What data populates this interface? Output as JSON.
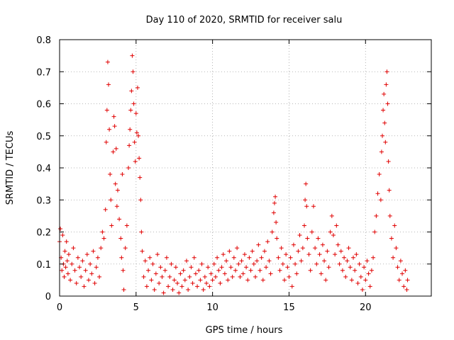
{
  "chart_data": {
    "type": "scatter",
    "title": "Day 110 of 2020, SRMTID for receiver salu",
    "xlabel": "GPS time / hours",
    "ylabel": "SRMTID / TECUs",
    "xlim": [
      0,
      24.3
    ],
    "ylim": [
      0,
      0.8
    ],
    "xticks": [
      0,
      5,
      10,
      15,
      20
    ],
    "xtick_labels": [
      "0",
      "5",
      "10",
      "15",
      "20"
    ],
    "yticks": [
      0,
      0.1,
      0.2,
      0.3,
      0.4,
      0.5,
      0.6,
      0.7,
      0.8
    ],
    "ytick_labels": [
      "0",
      "0.1",
      "0.2",
      "0.3",
      "0.4",
      "0.5",
      "0.6",
      "0.7",
      "0.8"
    ],
    "grid": true,
    "marker": "+",
    "color": "#e00000",
    "series": [
      {
        "name": "SRMTID",
        "points": [
          [
            0.0,
            0.17
          ],
          [
            0.05,
            0.21
          ],
          [
            0.1,
            0.12
          ],
          [
            0.15,
            0.08
          ],
          [
            0.2,
            0.19
          ],
          [
            0.25,
            0.1
          ],
          [
            0.3,
            0.06
          ],
          [
            0.35,
            0.14
          ],
          [
            0.4,
            0.09
          ],
          [
            0.45,
            0.17
          ],
          [
            0.5,
            0.11
          ],
          [
            0.55,
            0.07
          ],
          [
            0.6,
            0.13
          ],
          [
            0.7,
            0.05
          ],
          [
            0.8,
            0.1
          ],
          [
            0.9,
            0.15
          ],
          [
            1.0,
            0.08
          ],
          [
            1.1,
            0.04
          ],
          [
            1.2,
            0.12
          ],
          [
            1.3,
            0.09
          ],
          [
            1.4,
            0.06
          ],
          [
            1.5,
            0.11
          ],
          [
            1.6,
            0.03
          ],
          [
            1.7,
            0.08
          ],
          [
            1.8,
            0.13
          ],
          [
            1.9,
            0.05
          ],
          [
            2.0,
            0.1
          ],
          [
            2.1,
            0.07
          ],
          [
            2.2,
            0.14
          ],
          [
            2.3,
            0.04
          ],
          [
            2.4,
            0.09
          ],
          [
            2.5,
            0.12
          ],
          [
            2.6,
            0.06
          ],
          [
            2.7,
            0.15
          ],
          [
            2.8,
            0.2
          ],
          [
            2.9,
            0.18
          ],
          [
            3.0,
            0.27
          ],
          [
            3.05,
            0.48
          ],
          [
            3.1,
            0.58
          ],
          [
            3.15,
            0.73
          ],
          [
            3.2,
            0.66
          ],
          [
            3.25,
            0.52
          ],
          [
            3.3,
            0.38
          ],
          [
            3.35,
            0.3
          ],
          [
            3.4,
            0.22
          ],
          [
            3.5,
            0.45
          ],
          [
            3.55,
            0.56
          ],
          [
            3.6,
            0.53
          ],
          [
            3.65,
            0.35
          ],
          [
            3.7,
            0.46
          ],
          [
            3.75,
            0.28
          ],
          [
            3.8,
            0.33
          ],
          [
            3.9,
            0.24
          ],
          [
            4.0,
            0.18
          ],
          [
            4.05,
            0.12
          ],
          [
            4.1,
            0.38
          ],
          [
            4.15,
            0.08
          ],
          [
            4.2,
            0.02
          ],
          [
            4.3,
            0.15
          ],
          [
            4.4,
            0.22
          ],
          [
            4.5,
            0.4
          ],
          [
            4.55,
            0.47
          ],
          [
            4.6,
            0.52
          ],
          [
            4.65,
            0.58
          ],
          [
            4.7,
            0.64
          ],
          [
            4.75,
            0.75
          ],
          [
            4.8,
            0.7
          ],
          [
            4.85,
            0.6
          ],
          [
            4.9,
            0.48
          ],
          [
            4.95,
            0.42
          ],
          [
            5.0,
            0.57
          ],
          [
            5.05,
            0.51
          ],
          [
            5.1,
            0.65
          ],
          [
            5.15,
            0.5
          ],
          [
            5.2,
            0.43
          ],
          [
            5.25,
            0.37
          ],
          [
            5.3,
            0.3
          ],
          [
            5.35,
            0.2
          ],
          [
            5.4,
            0.14
          ],
          [
            5.5,
            0.06
          ],
          [
            5.6,
            0.11
          ],
          [
            5.7,
            0.03
          ],
          [
            5.8,
            0.08
          ],
          [
            5.9,
            0.12
          ],
          [
            6.0,
            0.05
          ],
          [
            6.1,
            0.1
          ],
          [
            6.2,
            0.02
          ],
          [
            6.3,
            0.07
          ],
          [
            6.4,
            0.13
          ],
          [
            6.5,
            0.04
          ],
          [
            6.6,
            0.09
          ],
          [
            6.7,
            0.06
          ],
          [
            6.8,
            0.01
          ],
          [
            6.9,
            0.08
          ],
          [
            7.0,
            0.12
          ],
          [
            7.1,
            0.03
          ],
          [
            7.2,
            0.06
          ],
          [
            7.3,
            0.1
          ],
          [
            7.4,
            0.02
          ],
          [
            7.5,
            0.05
          ],
          [
            7.6,
            0.09
          ],
          [
            7.7,
            0.04
          ],
          [
            7.8,
            0.01
          ],
          [
            7.9,
            0.07
          ],
          [
            8.0,
            0.03
          ],
          [
            8.1,
            0.08
          ],
          [
            8.2,
            0.05
          ],
          [
            8.3,
            0.11
          ],
          [
            8.4,
            0.02
          ],
          [
            8.5,
            0.06
          ],
          [
            8.6,
            0.09
          ],
          [
            8.7,
            0.04
          ],
          [
            8.8,
            0.12
          ],
          [
            8.9,
            0.07
          ],
          [
            9.0,
            0.03
          ],
          [
            9.1,
            0.08
          ],
          [
            9.2,
            0.05
          ],
          [
            9.3,
            0.1
          ],
          [
            9.4,
            0.02
          ],
          [
            9.5,
            0.06
          ],
          [
            9.6,
            0.04
          ],
          [
            9.7,
            0.09
          ],
          [
            9.8,
            0.03
          ],
          [
            9.9,
            0.07
          ],
          [
            10.0,
            0.05
          ],
          [
            10.1,
            0.1
          ],
          [
            10.2,
            0.06
          ],
          [
            10.3,
            0.12
          ],
          [
            10.4,
            0.08
          ],
          [
            10.5,
            0.04
          ],
          [
            10.6,
            0.09
          ],
          [
            10.7,
            0.13
          ],
          [
            10.8,
            0.07
          ],
          [
            10.9,
            0.11
          ],
          [
            11.0,
            0.05
          ],
          [
            11.1,
            0.14
          ],
          [
            11.2,
            0.09
          ],
          [
            11.3,
            0.06
          ],
          [
            11.4,
            0.12
          ],
          [
            11.5,
            0.08
          ],
          [
            11.6,
            0.15
          ],
          [
            11.7,
            0.1
          ],
          [
            11.8,
            0.06
          ],
          [
            11.9,
            0.11
          ],
          [
            12.0,
            0.07
          ],
          [
            12.1,
            0.13
          ],
          [
            12.2,
            0.09
          ],
          [
            12.3,
            0.05
          ],
          [
            12.4,
            0.12
          ],
          [
            12.5,
            0.08
          ],
          [
            12.6,
            0.14
          ],
          [
            12.7,
            0.1
          ],
          [
            12.8,
            0.06
          ],
          [
            12.9,
            0.11
          ],
          [
            13.0,
            0.16
          ],
          [
            13.1,
            0.08
          ],
          [
            13.2,
            0.12
          ],
          [
            13.3,
            0.05
          ],
          [
            13.4,
            0.14
          ],
          [
            13.5,
            0.09
          ],
          [
            13.6,
            0.17
          ],
          [
            13.7,
            0.11
          ],
          [
            13.8,
            0.07
          ],
          [
            13.9,
            0.2
          ],
          [
            14.0,
            0.26
          ],
          [
            14.05,
            0.29
          ],
          [
            14.1,
            0.31
          ],
          [
            14.15,
            0.23
          ],
          [
            14.2,
            0.18
          ],
          [
            14.3,
            0.12
          ],
          [
            14.4,
            0.08
          ],
          [
            14.5,
            0.15
          ],
          [
            14.6,
            0.1
          ],
          [
            14.7,
            0.05
          ],
          [
            14.8,
            0.13
          ],
          [
            14.9,
            0.09
          ],
          [
            15.0,
            0.06
          ],
          [
            15.1,
            0.12
          ],
          [
            15.2,
            0.03
          ],
          [
            15.3,
            0.16
          ],
          [
            15.4,
            0.1
          ],
          [
            15.5,
            0.07
          ],
          [
            15.6,
            0.14
          ],
          [
            15.7,
            0.19
          ],
          [
            15.8,
            0.11
          ],
          [
            15.9,
            0.15
          ],
          [
            16.0,
            0.22
          ],
          [
            16.05,
            0.3
          ],
          [
            16.1,
            0.35
          ],
          [
            16.15,
            0.28
          ],
          [
            16.2,
            0.18
          ],
          [
            16.3,
            0.13
          ],
          [
            16.4,
            0.08
          ],
          [
            16.5,
            0.2
          ],
          [
            16.6,
            0.28
          ],
          [
            16.7,
            0.15
          ],
          [
            16.8,
            0.1
          ],
          [
            16.9,
            0.18
          ],
          [
            17.0,
            0.13
          ],
          [
            17.1,
            0.07
          ],
          [
            17.2,
            0.16
          ],
          [
            17.3,
            0.11
          ],
          [
            17.4,
            0.05
          ],
          [
            17.5,
            0.14
          ],
          [
            17.6,
            0.09
          ],
          [
            17.7,
            0.2
          ],
          [
            17.8,
            0.25
          ],
          [
            17.9,
            0.19
          ],
          [
            18.0,
            0.13
          ],
          [
            18.1,
            0.22
          ],
          [
            18.2,
            0.16
          ],
          [
            18.3,
            0.1
          ],
          [
            18.4,
            0.14
          ],
          [
            18.5,
            0.08
          ],
          [
            18.6,
            0.12
          ],
          [
            18.7,
            0.06
          ],
          [
            18.8,
            0.11
          ],
          [
            18.9,
            0.15
          ],
          [
            19.0,
            0.09
          ],
          [
            19.1,
            0.05
          ],
          [
            19.2,
            0.12
          ],
          [
            19.3,
            0.08
          ],
          [
            19.4,
            0.13
          ],
          [
            19.5,
            0.04
          ],
          [
            19.6,
            0.1
          ],
          [
            19.7,
            0.06
          ],
          [
            19.8,
            0.02
          ],
          [
            19.9,
            0.09
          ],
          [
            20.0,
            0.05
          ],
          [
            20.1,
            0.11
          ],
          [
            20.2,
            0.07
          ],
          [
            20.3,
            0.03
          ],
          [
            20.4,
            0.08
          ],
          [
            20.5,
            0.12
          ],
          [
            20.6,
            0.2
          ],
          [
            20.7,
            0.25
          ],
          [
            20.8,
            0.32
          ],
          [
            20.9,
            0.38
          ],
          [
            21.0,
            0.3
          ],
          [
            21.05,
            0.45
          ],
          [
            21.1,
            0.5
          ],
          [
            21.15,
            0.58
          ],
          [
            21.2,
            0.63
          ],
          [
            21.25,
            0.54
          ],
          [
            21.3,
            0.48
          ],
          [
            21.35,
            0.66
          ],
          [
            21.4,
            0.7
          ],
          [
            21.45,
            0.6
          ],
          [
            21.5,
            0.42
          ],
          [
            21.55,
            0.33
          ],
          [
            21.6,
            0.25
          ],
          [
            21.7,
            0.18
          ],
          [
            21.8,
            0.12
          ],
          [
            21.9,
            0.22
          ],
          [
            22.0,
            0.15
          ],
          [
            22.1,
            0.09
          ],
          [
            22.2,
            0.05
          ],
          [
            22.3,
            0.11
          ],
          [
            22.4,
            0.07
          ],
          [
            22.5,
            0.03
          ],
          [
            22.6,
            0.08
          ],
          [
            22.7,
            0.02
          ],
          [
            22.75,
            0.05
          ]
        ]
      }
    ]
  }
}
